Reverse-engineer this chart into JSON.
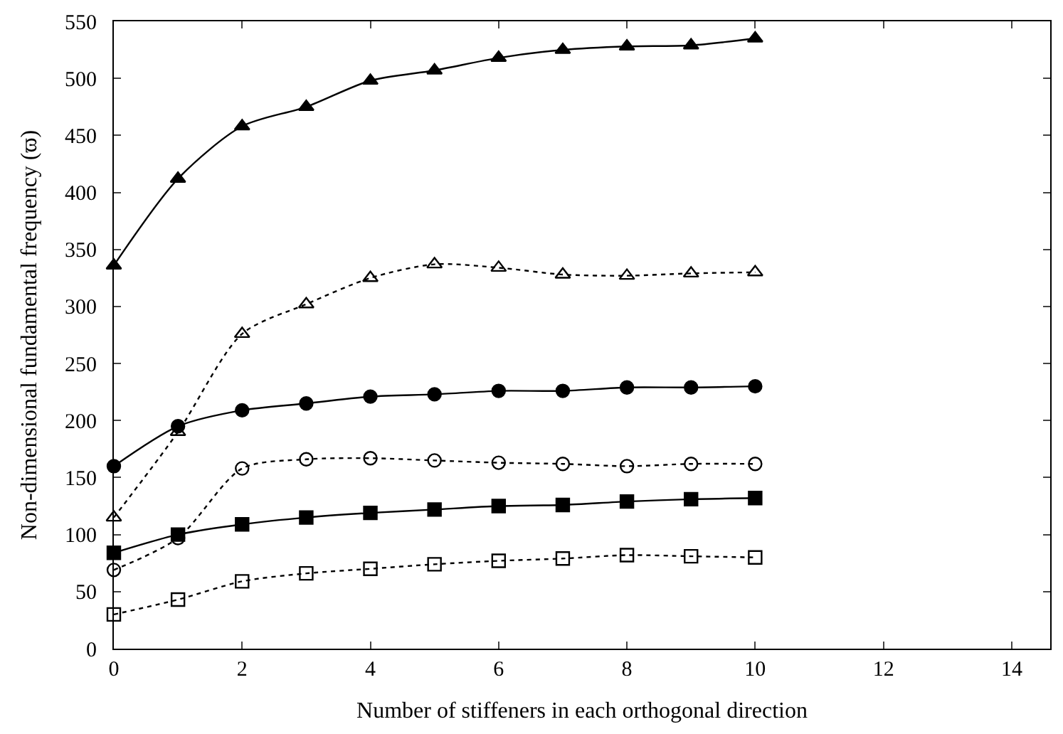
{
  "chart_data": {
    "type": "line",
    "xlabel": "Number of stiffeners in each orthogonal direction",
    "ylabel": "Non-dimensional fundamental frequency (ϖ)",
    "x": [
      0,
      1,
      2,
      3,
      4,
      5,
      6,
      7,
      8,
      9,
      10
    ],
    "series": [
      {
        "color": "#000000",
        "marker": "triangle",
        "line_style": "solid",
        "values": [
          336,
          412,
          458,
          475,
          498,
          507,
          518,
          525,
          528,
          529,
          535
        ]
      },
      {
        "color": "#000000",
        "marker": "triangle",
        "line_style": "dotted",
        "values": [
          115,
          190,
          276,
          302,
          325,
          337,
          334,
          328,
          327,
          329,
          330
        ]
      },
      {
        "color": "#000000",
        "marker": "circle",
        "line_style": "solid",
        "values": [
          160,
          195,
          209,
          215,
          221,
          223,
          226,
          226,
          229,
          229,
          230
        ]
      },
      {
        "color": "#000000",
        "marker": "circle",
        "line_style": "dotted",
        "values": [
          69,
          97,
          158,
          166,
          167,
          165,
          163,
          162,
          160,
          162,
          162
        ]
      },
      {
        "color": "#000000",
        "marker": "square",
        "line_style": "solid",
        "values": [
          84,
          100,
          109,
          115,
          119,
          122,
          125,
          126,
          129,
          131,
          132
        ]
      },
      {
        "color": "#000000",
        "marker": "square",
        "line_style": "dotted",
        "values": [
          30,
          43,
          59,
          66,
          70,
          74,
          77,
          79,
          82,
          81,
          80
        ]
      }
    ],
    "xlim": [
      0,
      14.6
    ],
    "xticks": [
      0,
      2,
      4,
      6,
      8,
      10,
      12,
      14
    ],
    "ylim": [
      0,
      550
    ],
    "yticks": [
      0,
      50,
      100,
      150,
      200,
      250,
      300,
      350,
      400,
      450,
      500,
      550
    ]
  }
}
